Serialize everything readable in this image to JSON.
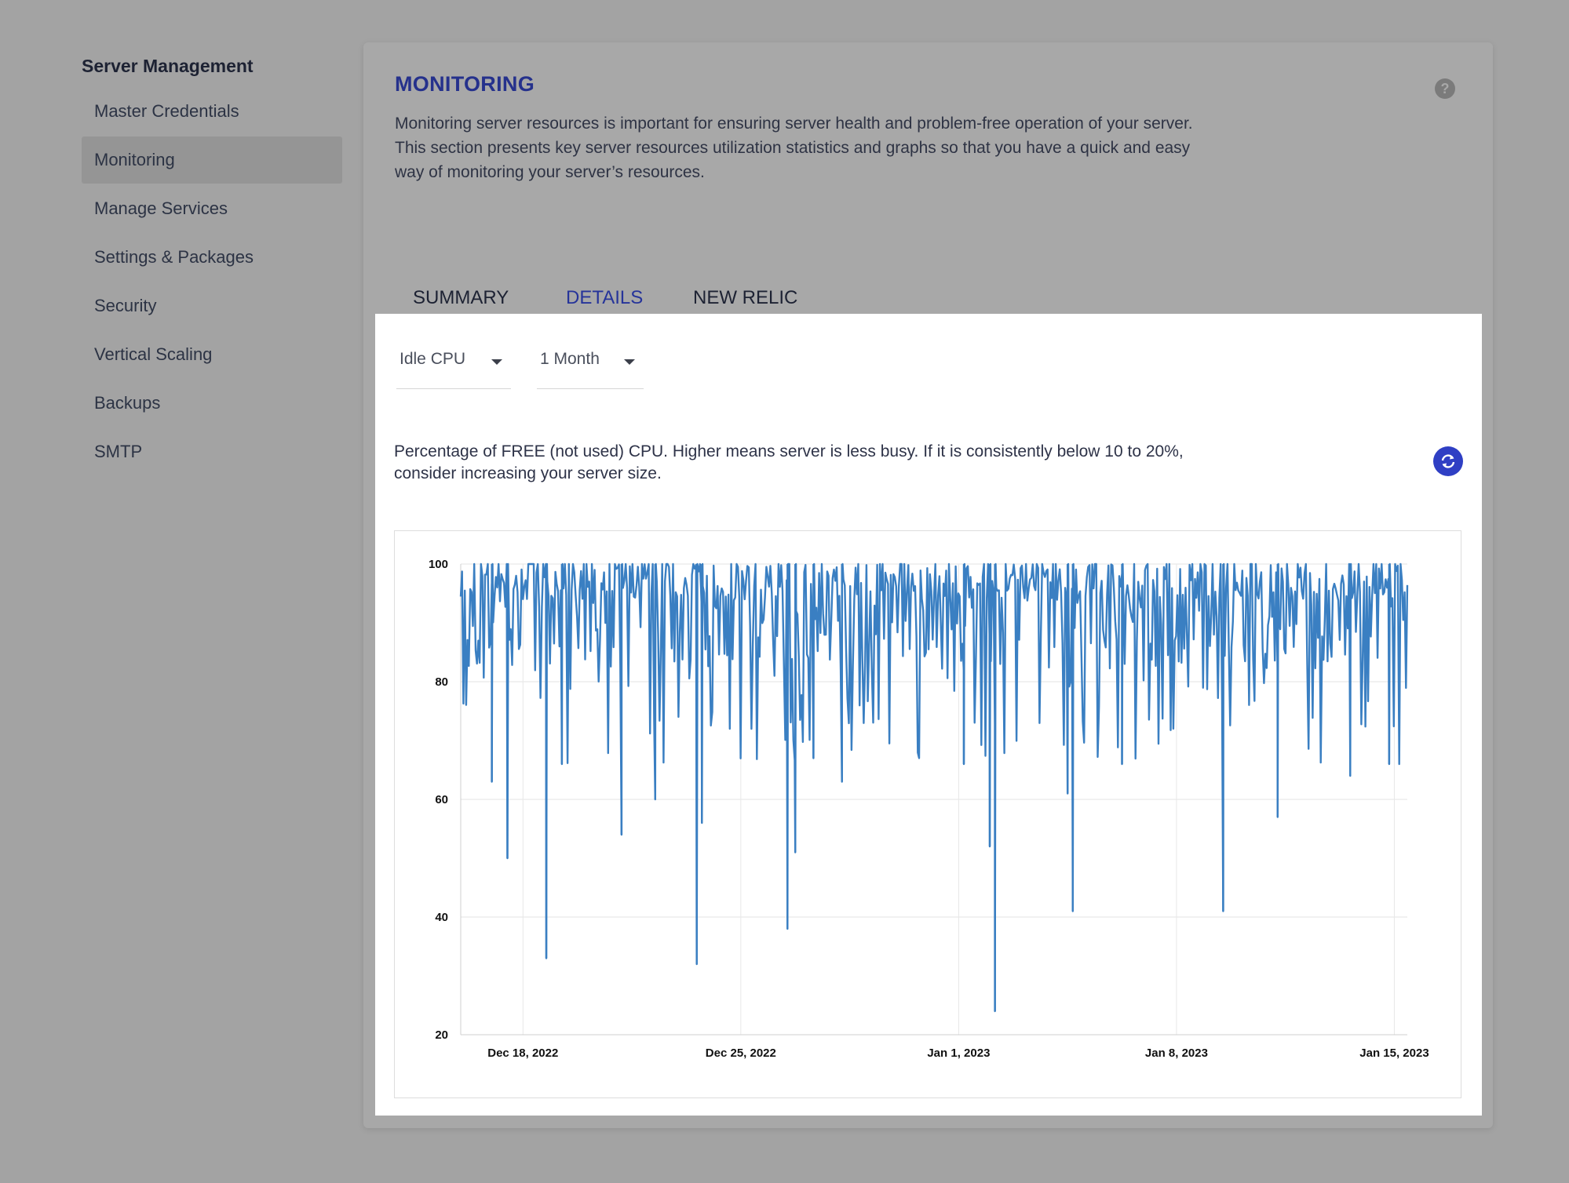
{
  "sidebar": {
    "title": "Server Management",
    "items": [
      {
        "label": "Master Credentials",
        "active": false
      },
      {
        "label": "Monitoring",
        "active": true
      },
      {
        "label": "Manage Services",
        "active": false
      },
      {
        "label": "Settings & Packages",
        "active": false
      },
      {
        "label": "Security",
        "active": false
      },
      {
        "label": "Vertical Scaling",
        "active": false
      },
      {
        "label": "Backups",
        "active": false
      },
      {
        "label": "SMTP",
        "active": false
      }
    ]
  },
  "panel": {
    "title": "MONITORING",
    "help_icon": "question-mark",
    "description": "Monitoring server resources is important for ensuring server health and problem-free operation of your server. This section presents key server resources utilization statistics and graphs so that you have a quick and easy way of monitoring your server’s resources."
  },
  "tabs": [
    {
      "label": "SUMMARY",
      "active": false
    },
    {
      "label": "DETAILS",
      "active": true
    },
    {
      "label": "NEW RELIC",
      "active": false
    }
  ],
  "filters": {
    "metric": "Idle CPU",
    "range": "1 Month"
  },
  "chart_description": "Percentage of FREE (not used) CPU. Higher means server is less busy. If it is consistently below 10 to 20%, consider increasing your server size.",
  "colors": {
    "accent": "#2f3fc4",
    "title": "#25318c",
    "series": "#3a7fc2"
  },
  "chart_data": {
    "type": "line",
    "title": "",
    "xlabel": "",
    "ylabel": "",
    "ylim": [
      20,
      100
    ],
    "yticks": [
      20,
      40,
      60,
      80,
      100
    ],
    "xlim": [
      "2022-12-16",
      "2023-01-15"
    ],
    "xticks": [
      "Dec 18, 2022",
      "Dec 25, 2022",
      "Jan 1, 2023",
      "Jan 8, 2023",
      "Jan 15, 2023"
    ],
    "grid": true,
    "baseline": 100,
    "series": [
      {
        "name": "",
        "notable_dips": [
          {
            "x": "2022-12-17 00:00",
            "y": 63
          },
          {
            "x": "2022-12-17 12:00",
            "y": 50
          },
          {
            "x": "2022-12-18 18:00",
            "y": 33
          },
          {
            "x": "2022-12-19 06:00",
            "y": 66
          },
          {
            "x": "2022-12-21 04:00",
            "y": 54
          },
          {
            "x": "2022-12-22 06:00",
            "y": 60
          },
          {
            "x": "2022-12-23 14:00",
            "y": 32
          },
          {
            "x": "2022-12-23 18:00",
            "y": 56
          },
          {
            "x": "2022-12-26 12:00",
            "y": 38
          },
          {
            "x": "2022-12-26 18:00",
            "y": 51
          },
          {
            "x": "2022-12-27 08:00",
            "y": 67
          },
          {
            "x": "2022-12-28 06:00",
            "y": 63
          },
          {
            "x": "2023-01-01 04:00",
            "y": 66
          },
          {
            "x": "2023-01-02 00:00",
            "y": 52
          },
          {
            "x": "2023-01-02 04:00",
            "y": 24
          },
          {
            "x": "2023-01-04 12:00",
            "y": 61
          },
          {
            "x": "2023-01-04 16:00",
            "y": 41
          },
          {
            "x": "2023-01-06 06:00",
            "y": 66
          },
          {
            "x": "2023-01-09 12:00",
            "y": 41
          },
          {
            "x": "2023-01-11 06:00",
            "y": 57
          },
          {
            "x": "2023-01-13 14:00",
            "y": 64
          },
          {
            "x": "2023-01-14 20:00",
            "y": 66
          }
        ]
      }
    ]
  }
}
